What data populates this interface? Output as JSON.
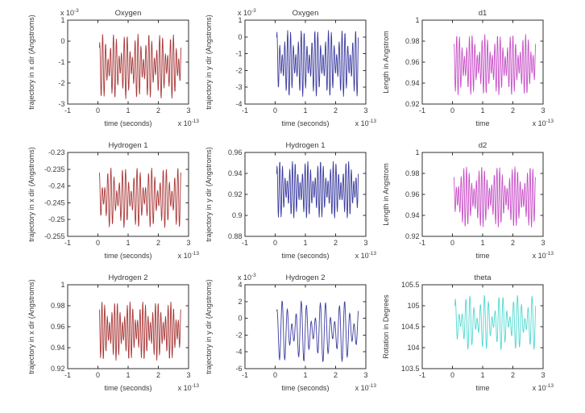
{
  "style": {
    "background": "#ffffff",
    "text_color": "#3a3a3a",
    "axis_color": "#2f2f2f"
  },
  "chart_data": [
    {
      "type": "line",
      "title": "Oxygen",
      "xlabel": "time (seconds)",
      "ylabel": "trajectory in x dir (Angstroms)",
      "x_mult_base": "x 10",
      "x_mult_exp": "-13",
      "y_mult_base": "x 10",
      "y_mult_exp": "-3",
      "xlim": [
        -1,
        3
      ],
      "ylim": [
        -3,
        1
      ],
      "xtick_vals": [
        -1,
        0,
        1,
        2,
        3
      ],
      "xtick_labels": [
        "-1",
        "0",
        "1",
        "2",
        "3"
      ],
      "ytick_vals": [
        1,
        0,
        -1,
        -2,
        -3
      ],
      "ytick_labels": [
        "1",
        "0",
        "-1",
        "-2",
        "-3"
      ],
      "grid": false,
      "legend": null,
      "color": "#aa3939",
      "signal": {
        "t0": 0.05,
        "t1": 2.75,
        "n": 260,
        "c": -1.2,
        "a1": 0.95,
        "f1": 30,
        "p1": 0.4,
        "a2": 0.6,
        "f2": 23,
        "p2": 2.1
      }
    },
    {
      "type": "line",
      "title": "Oxygen",
      "xlabel": "time (seconds)",
      "ylabel": "trajectory in y dir (Angstroms)",
      "x_mult_base": "x 10",
      "x_mult_exp": "-13",
      "y_mult_base": "x 10",
      "y_mult_exp": "-3",
      "xlim": [
        -1,
        3
      ],
      "ylim": [
        -4,
        1
      ],
      "xtick_vals": [
        -1,
        0,
        1,
        2,
        3
      ],
      "xtick_labels": [
        "-1",
        "0",
        "1",
        "2",
        "3"
      ],
      "ytick_vals": [
        1,
        0,
        -1,
        -2,
        -3,
        -4
      ],
      "ytick_labels": [
        "1",
        "0",
        "-1",
        "-2",
        "-3",
        "-4"
      ],
      "grid": false,
      "legend": null,
      "color": "#3c3ca0",
      "signal": {
        "t0": 0.05,
        "t1": 2.75,
        "n": 260,
        "c": -1.55,
        "a1": 1.25,
        "f1": 30,
        "p1": 1.2,
        "a2": 0.75,
        "f2": 24,
        "p2": 0.5
      }
    },
    {
      "type": "line",
      "title": "d1",
      "xlabel": "time",
      "ylabel": "Length in Angstrom",
      "x_mult_base": "x 10",
      "x_mult_exp": "-13",
      "y_mult_base": null,
      "y_mult_exp": null,
      "xlim": [
        -1,
        3
      ],
      "ylim": [
        0.92,
        1
      ],
      "xtick_vals": [
        -1,
        0,
        1,
        2,
        3
      ],
      "xtick_labels": [
        "-1",
        "0",
        "1",
        "2",
        "3"
      ],
      "ytick_vals": [
        1,
        0.98,
        0.96,
        0.94,
        0.92
      ],
      "ytick_labels": [
        "1",
        "0.98",
        "0.96",
        "0.94",
        "0.92"
      ],
      "grid": false,
      "legend": null,
      "color": "#c850c8",
      "signal": {
        "t0": 0.05,
        "t1": 2.75,
        "n": 280,
        "c": 0.9575,
        "a1": 0.0185,
        "f1": 32,
        "p1": 0.9,
        "a2": 0.0105,
        "f2": 26,
        "p2": 2.6
      }
    },
    {
      "type": "line",
      "title": "Hydrogen 1",
      "xlabel": "time (seconds)",
      "ylabel": "trajectory in x dir (Angstroms)",
      "x_mult_base": "x 10",
      "x_mult_exp": "-13",
      "y_mult_base": null,
      "y_mult_exp": null,
      "xlim": [
        -1,
        3
      ],
      "ylim": [
        -0.255,
        -0.23
      ],
      "xtick_vals": [
        -1,
        0,
        1,
        2,
        3
      ],
      "xtick_labels": [
        "-1",
        "0",
        "1",
        "2",
        "3"
      ],
      "ytick_vals": [
        -0.23,
        -0.235,
        -0.24,
        -0.245,
        -0.25,
        -0.255
      ],
      "ytick_labels": [
        "-0.23",
        "-0.235",
        "-0.24",
        "-0.245",
        "-0.25",
        "-0.255"
      ],
      "grid": false,
      "legend": null,
      "color": "#aa3939",
      "signal": {
        "t0": 0.05,
        "t1": 2.75,
        "n": 240,
        "c": -0.2435,
        "a1": 0.0055,
        "f1": 28,
        "p1": 2.0,
        "a2": 0.0035,
        "f2": 22,
        "p2": 0.8
      }
    },
    {
      "type": "line",
      "title": "Hydrogen 1",
      "xlabel": "time (seconds)",
      "ylabel": "trajectory in y dir (Angstroms)",
      "x_mult_base": "x 10",
      "x_mult_exp": "-13",
      "y_mult_base": null,
      "y_mult_exp": null,
      "xlim": [
        -1,
        3
      ],
      "ylim": [
        0.88,
        0.96
      ],
      "xtick_vals": [
        -1,
        0,
        1,
        2,
        3
      ],
      "xtick_labels": [
        "-1",
        "0",
        "1",
        "2",
        "3"
      ],
      "ytick_vals": [
        0.96,
        0.94,
        0.92,
        0.9,
        0.88
      ],
      "ytick_labels": [
        "0.96",
        "0.94",
        "0.92",
        "0.9",
        "0.88"
      ],
      "grid": false,
      "legend": null,
      "color": "#3c3ca0",
      "signal": {
        "t0": 0.05,
        "t1": 2.75,
        "n": 280,
        "c": 0.9245,
        "a1": 0.0175,
        "f1": 32,
        "p1": 0.3,
        "a2": 0.01,
        "f2": 26,
        "p2": 1.7
      }
    },
    {
      "type": "line",
      "title": "d2",
      "xlabel": "time",
      "ylabel": "Length in Angstrom",
      "x_mult_base": "x 10",
      "x_mult_exp": "-13",
      "y_mult_base": null,
      "y_mult_exp": null,
      "xlim": [
        -1,
        3
      ],
      "ylim": [
        0.92,
        1
      ],
      "xtick_vals": [
        -1,
        0,
        1,
        2,
        3
      ],
      "xtick_labels": [
        "-1",
        "0",
        "1",
        "2",
        "3"
      ],
      "ytick_vals": [
        1,
        0.98,
        0.96,
        0.94,
        0.92
      ],
      "ytick_labels": [
        "1",
        "0.98",
        "0.96",
        "0.94",
        "0.92"
      ],
      "grid": false,
      "legend": null,
      "color": "#c850c8",
      "signal": {
        "t0": 0.05,
        "t1": 2.75,
        "n": 280,
        "c": 0.9575,
        "a1": 0.0185,
        "f1": 32,
        "p1": 2.2,
        "a2": 0.0105,
        "f2": 27,
        "p2": 0.4
      }
    },
    {
      "type": "line",
      "title": "Hydrogen 2",
      "xlabel": "time (seconds)",
      "ylabel": "trajectory in x dir (Angstroms)",
      "x_mult_base": "x 10",
      "x_mult_exp": "-13",
      "y_mult_base": null,
      "y_mult_exp": null,
      "xlim": [
        -1,
        3
      ],
      "ylim": [
        0.92,
        1
      ],
      "xtick_vals": [
        -1,
        0,
        1,
        2,
        3
      ],
      "xtick_labels": [
        "-1",
        "0",
        "1",
        "2",
        "3"
      ],
      "ytick_vals": [
        1,
        0.98,
        0.96,
        0.94,
        0.92
      ],
      "ytick_labels": [
        "1",
        "0.98",
        "0.96",
        "0.94",
        "0.92"
      ],
      "grid": false,
      "legend": null,
      "color": "#aa3939",
      "signal": {
        "t0": 0.05,
        "t1": 2.75,
        "n": 280,
        "c": 0.956,
        "a1": 0.018,
        "f1": 32,
        "p1": 1.5,
        "a2": 0.01,
        "f2": 26,
        "p2": 2.9
      }
    },
    {
      "type": "line",
      "title": "Hydrogen 2",
      "xlabel": "time (seconds)",
      "ylabel": "trajectory in y dir (Angstroms)",
      "x_mult_base": "x 10",
      "x_mult_exp": "-13",
      "y_mult_base": "x 10",
      "y_mult_exp": "-3",
      "xlim": [
        -1,
        3
      ],
      "ylim": [
        -6,
        4
      ],
      "xtick_vals": [
        -1,
        0,
        1,
        2,
        3
      ],
      "xtick_labels": [
        "-1",
        "0",
        "1",
        "2",
        "3"
      ],
      "ytick_vals": [
        4,
        2,
        0,
        -2,
        -4,
        -6
      ],
      "ytick_labels": [
        "4",
        "2",
        "0",
        "-2",
        "-4",
        "-6"
      ],
      "grid": false,
      "legend": null,
      "color": "#3c3ca0",
      "signal": {
        "t0": 0.05,
        "t1": 2.75,
        "n": 170,
        "c": -1.55,
        "a1": 2.3,
        "f1": 17,
        "p1": 0.7,
        "a2": 1.4,
        "f2": 13,
        "p2": 2.4
      }
    },
    {
      "type": "line",
      "title": "theta",
      "xlabel": "time",
      "ylabel": "Rotation in Degrees",
      "x_mult_base": "x 10",
      "x_mult_exp": "-13",
      "y_mult_base": null,
      "y_mult_exp": null,
      "xlim": [
        -1,
        3
      ],
      "ylim": [
        103.5,
        105.5
      ],
      "xtick_vals": [
        -1,
        0,
        1,
        2,
        3
      ],
      "xtick_labels": [
        "-1",
        "0",
        "1",
        "2",
        "3"
      ],
      "ytick_vals": [
        105.5,
        105,
        104.5,
        104,
        103.5
      ],
      "ytick_labels": [
        "105.5",
        "105",
        "104.5",
        "104",
        "103.5"
      ],
      "grid": false,
      "legend": null,
      "color": "#50d8d0",
      "signal": {
        "t0": 0.08,
        "t1": 2.75,
        "n": 200,
        "c": 104.6,
        "a1": 0.38,
        "f1": 22,
        "p1": 1.1,
        "a2": 0.28,
        "f2": 17,
        "p2": 0.2
      }
    }
  ]
}
